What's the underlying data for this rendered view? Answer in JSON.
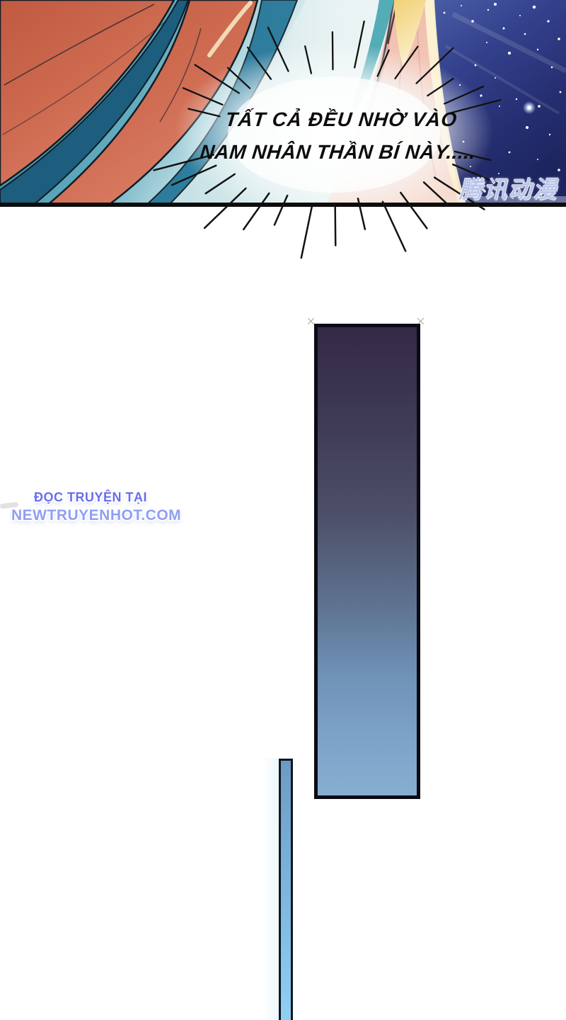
{
  "comic_page": {
    "panel": {
      "speech_bubble": {
        "line1": "TẤT CẢ ĐỀU NHỜ VÀO",
        "line2": "NAM NHÂN THẦN BÍ NÀY....."
      },
      "watermark_text": "腾讯动漫"
    },
    "site_credit": {
      "line1": "ĐỌC TRUYỆN TẠI",
      "line2": "NEWTRUYENHOT.COM"
    },
    "colors": {
      "hair_orange": "#cd6a50",
      "background_teal": "#2f86a2",
      "night_sky": "#26306f",
      "drape_pink": "#f2c2b2",
      "panel_border": "#0d0d0d",
      "pillar_top": "#352a46",
      "pillar_bottom": "#86aed0",
      "pillar_border": "#0b0b14",
      "thin_bar_fill": "#8fd0f3",
      "credit_line1_color": "#6a6ee8",
      "credit_line2_color": "#8f9ff2"
    }
  }
}
